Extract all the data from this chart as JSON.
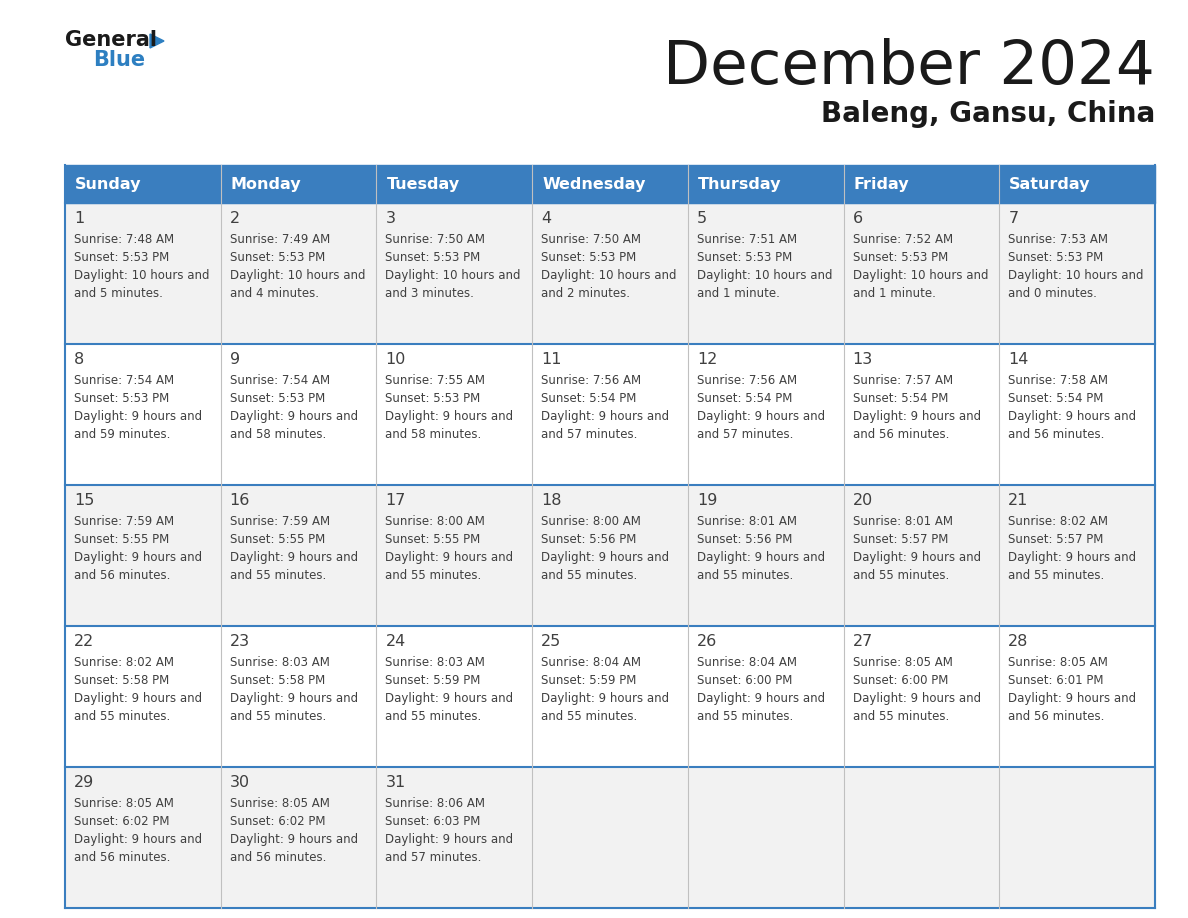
{
  "title": "December 2024",
  "subtitle": "Baleng, Gansu, China",
  "header_color": "#3a7ebf",
  "header_text_color": "#ffffff",
  "days_of_week": [
    "Sunday",
    "Monday",
    "Tuesday",
    "Wednesday",
    "Thursday",
    "Friday",
    "Saturday"
  ],
  "cell_bg_odd": "#f2f2f2",
  "cell_bg_even": "#ffffff",
  "border_color": "#3a7ebf",
  "row_border_color": "#3a7ebf",
  "text_color": "#404040",
  "calendar": [
    [
      {
        "day": "1",
        "sunrise": "7:48 AM",
        "sunset": "5:53 PM",
        "daylight_h": "10",
        "daylight_m": "5 minutes"
      },
      {
        "day": "2",
        "sunrise": "7:49 AM",
        "sunset": "5:53 PM",
        "daylight_h": "10",
        "daylight_m": "4 minutes"
      },
      {
        "day": "3",
        "sunrise": "7:50 AM",
        "sunset": "5:53 PM",
        "daylight_h": "10",
        "daylight_m": "3 minutes"
      },
      {
        "day": "4",
        "sunrise": "7:50 AM",
        "sunset": "5:53 PM",
        "daylight_h": "10",
        "daylight_m": "2 minutes"
      },
      {
        "day": "5",
        "sunrise": "7:51 AM",
        "sunset": "5:53 PM",
        "daylight_h": "10",
        "daylight_m": "1 minute"
      },
      {
        "day": "6",
        "sunrise": "7:52 AM",
        "sunset": "5:53 PM",
        "daylight_h": "10",
        "daylight_m": "1 minute"
      },
      {
        "day": "7",
        "sunrise": "7:53 AM",
        "sunset": "5:53 PM",
        "daylight_h": "10",
        "daylight_m": "0 minutes"
      }
    ],
    [
      {
        "day": "8",
        "sunrise": "7:54 AM",
        "sunset": "5:53 PM",
        "daylight_h": "9",
        "daylight_m": "59 minutes"
      },
      {
        "day": "9",
        "sunrise": "7:54 AM",
        "sunset": "5:53 PM",
        "daylight_h": "9",
        "daylight_m": "58 minutes"
      },
      {
        "day": "10",
        "sunrise": "7:55 AM",
        "sunset": "5:53 PM",
        "daylight_h": "9",
        "daylight_m": "58 minutes"
      },
      {
        "day": "11",
        "sunrise": "7:56 AM",
        "sunset": "5:54 PM",
        "daylight_h": "9",
        "daylight_m": "57 minutes"
      },
      {
        "day": "12",
        "sunrise": "7:56 AM",
        "sunset": "5:54 PM",
        "daylight_h": "9",
        "daylight_m": "57 minutes"
      },
      {
        "day": "13",
        "sunrise": "7:57 AM",
        "sunset": "5:54 PM",
        "daylight_h": "9",
        "daylight_m": "56 minutes"
      },
      {
        "day": "14",
        "sunrise": "7:58 AM",
        "sunset": "5:54 PM",
        "daylight_h": "9",
        "daylight_m": "56 minutes"
      }
    ],
    [
      {
        "day": "15",
        "sunrise": "7:59 AM",
        "sunset": "5:55 PM",
        "daylight_h": "9",
        "daylight_m": "56 minutes"
      },
      {
        "day": "16",
        "sunrise": "7:59 AM",
        "sunset": "5:55 PM",
        "daylight_h": "9",
        "daylight_m": "55 minutes"
      },
      {
        "day": "17",
        "sunrise": "8:00 AM",
        "sunset": "5:55 PM",
        "daylight_h": "9",
        "daylight_m": "55 minutes"
      },
      {
        "day": "18",
        "sunrise": "8:00 AM",
        "sunset": "5:56 PM",
        "daylight_h": "9",
        "daylight_m": "55 minutes"
      },
      {
        "day": "19",
        "sunrise": "8:01 AM",
        "sunset": "5:56 PM",
        "daylight_h": "9",
        "daylight_m": "55 minutes"
      },
      {
        "day": "20",
        "sunrise": "8:01 AM",
        "sunset": "5:57 PM",
        "daylight_h": "9",
        "daylight_m": "55 minutes"
      },
      {
        "day": "21",
        "sunrise": "8:02 AM",
        "sunset": "5:57 PM",
        "daylight_h": "9",
        "daylight_m": "55 minutes"
      }
    ],
    [
      {
        "day": "22",
        "sunrise": "8:02 AM",
        "sunset": "5:58 PM",
        "daylight_h": "9",
        "daylight_m": "55 minutes"
      },
      {
        "day": "23",
        "sunrise": "8:03 AM",
        "sunset": "5:58 PM",
        "daylight_h": "9",
        "daylight_m": "55 minutes"
      },
      {
        "day": "24",
        "sunrise": "8:03 AM",
        "sunset": "5:59 PM",
        "daylight_h": "9",
        "daylight_m": "55 minutes"
      },
      {
        "day": "25",
        "sunrise": "8:04 AM",
        "sunset": "5:59 PM",
        "daylight_h": "9",
        "daylight_m": "55 minutes"
      },
      {
        "day": "26",
        "sunrise": "8:04 AM",
        "sunset": "6:00 PM",
        "daylight_h": "9",
        "daylight_m": "55 minutes"
      },
      {
        "day": "27",
        "sunrise": "8:05 AM",
        "sunset": "6:00 PM",
        "daylight_h": "9",
        "daylight_m": "55 minutes"
      },
      {
        "day": "28",
        "sunrise": "8:05 AM",
        "sunset": "6:01 PM",
        "daylight_h": "9",
        "daylight_m": "56 minutes"
      }
    ],
    [
      {
        "day": "29",
        "sunrise": "8:05 AM",
        "sunset": "6:02 PM",
        "daylight_h": "9",
        "daylight_m": "56 minutes"
      },
      {
        "day": "30",
        "sunrise": "8:05 AM",
        "sunset": "6:02 PM",
        "daylight_h": "9",
        "daylight_m": "56 minutes"
      },
      {
        "day": "31",
        "sunrise": "8:06 AM",
        "sunset": "6:03 PM",
        "daylight_h": "9",
        "daylight_m": "57 minutes"
      },
      null,
      null,
      null,
      null
    ]
  ],
  "logo_general_color": "#1a1a1a",
  "logo_blue_color": "#2d7fc1",
  "logo_triangle_color": "#2d7fc1"
}
